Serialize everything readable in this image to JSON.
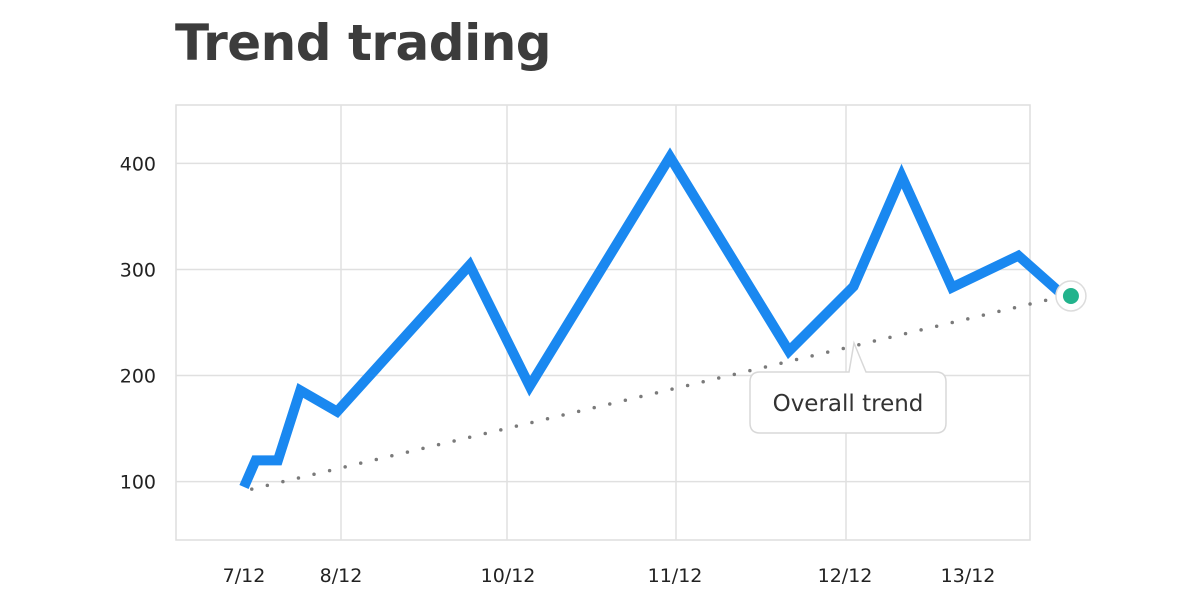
{
  "chart_data": {
    "type": "line",
    "title": "Trend trading",
    "xlabel": "",
    "ylabel": "",
    "x_tick_labels": [
      "7/12",
      "8/12",
      "10/12",
      "11/12",
      "12/12",
      "13/12"
    ],
    "y_ticks": [
      100,
      200,
      300,
      400
    ],
    "ylim": [
      45,
      455
    ],
    "grid": true,
    "series": [
      {
        "color": "#1a88f0",
        "points": [
          {
            "x": 0.0,
            "y": 95
          },
          {
            "x": 0.12,
            "y": 120
          },
          {
            "x": 0.35,
            "y": 120
          },
          {
            "x": 0.58,
            "y": 186
          },
          {
            "x": 0.96,
            "y": 166
          },
          {
            "x": 1.77,
            "y": 304
          },
          {
            "x": 2.13,
            "y": 190
          },
          {
            "x": 2.97,
            "y": 406
          },
          {
            "x": 3.67,
            "y": 223
          },
          {
            "x": 4.07,
            "y": 284
          },
          {
            "x": 4.46,
            "y": 388
          },
          {
            "x": 4.87,
            "y": 283
          },
          {
            "x": 5.41,
            "y": 313
          },
          {
            "x": 5.78,
            "y": 275
          }
        ]
      }
    ],
    "trend_line": {
      "label": "Overall trend",
      "style": "dotted",
      "color": "#7a7a7a",
      "start": {
        "x": 0.08,
        "y": 93
      },
      "end": {
        "x": 5.78,
        "y": 275
      }
    },
    "end_marker": {
      "color": "#22b38c"
    }
  }
}
